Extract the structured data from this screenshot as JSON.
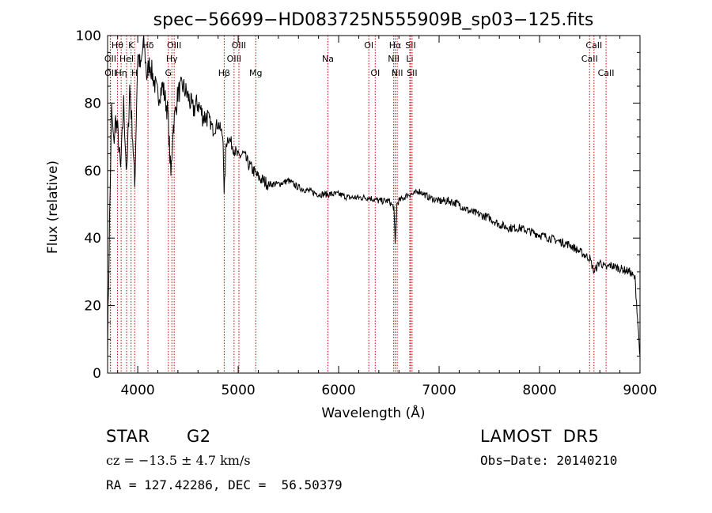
{
  "chart_data": {
    "type": "line",
    "title": "spec−56699−HD083725N555909B_sp03−125.fits",
    "xlabel": "Wavelength (Å)",
    "ylabel": "Flux (relative)",
    "xlim": [
      3700,
      9000
    ],
    "ylim": [
      0,
      100
    ],
    "xticks": [
      4000,
      5000,
      6000,
      7000,
      8000,
      9000
    ],
    "yticks": [
      0,
      20,
      40,
      60,
      80,
      100
    ],
    "grid": false,
    "series": [
      {
        "x": [
          3700,
          3720,
          3740,
          3760,
          3780,
          3800,
          3830,
          3860,
          3890,
          3920,
          3950,
          3970,
          4000,
          4030,
          4060,
          4090,
          4120,
          4150,
          4200,
          4250,
          4300,
          4330,
          4350,
          4400,
          4450,
          4500,
          4550,
          4600,
          4650,
          4700,
          4750,
          4800,
          4850,
          4860,
          4880,
          4900,
          4950,
          5000,
          5050,
          5100,
          5150,
          5200,
          5300,
          5400,
          5500,
          5600,
          5700,
          5800,
          5900,
          6000,
          6100,
          6200,
          6300,
          6400,
          6500,
          6550,
          6563,
          6580,
          6600,
          6650,
          6700,
          6750,
          6800,
          6850,
          6900,
          7000,
          7100,
          7200,
          7300,
          7400,
          7500,
          7600,
          7700,
          7800,
          7900,
          8000,
          8100,
          8200,
          8300,
          8400,
          8500,
          8542,
          8600,
          8662,
          8700,
          8800,
          8900,
          8950,
          9000
        ],
        "y": [
          8,
          45,
          78,
          68,
          75,
          72,
          60,
          80,
          58,
          85,
          70,
          55,
          95,
          90,
          99,
          88,
          92,
          88,
          82,
          85,
          77,
          58,
          72,
          83,
          85,
          82,
          78,
          80,
          76,
          76,
          72,
          74,
          70,
          52,
          68,
          70,
          67,
          64,
          65,
          62,
          60,
          58,
          56,
          56,
          57,
          55,
          54,
          53,
          53,
          53,
          52,
          52,
          52,
          51,
          51,
          49,
          38,
          50,
          51,
          52,
          53,
          53,
          54,
          53,
          52,
          51,
          51,
          50,
          48,
          47,
          46,
          44,
          43,
          43,
          42,
          41,
          40,
          39,
          38,
          36,
          34,
          30,
          33,
          31,
          32,
          31,
          30,
          28,
          5
        ]
      }
    ],
    "line_labels": [
      {
        "label": "Hθ",
        "wave": 3798,
        "row": 0
      },
      {
        "label": "K",
        "wave": 3934,
        "row": 0
      },
      {
        "label": "Hδ",
        "wave": 4102,
        "row": 0
      },
      {
        "label": "OIII",
        "wave": 4363,
        "row": 0
      },
      {
        "label": "OIII",
        "wave": 5007,
        "row": 0
      },
      {
        "label": "OI",
        "wave": 6300,
        "row": 0
      },
      {
        "label": "Hα",
        "wave": 6563,
        "row": 0
      },
      {
        "label": "SII",
        "wave": 6716,
        "row": 0
      },
      {
        "label": "CaII",
        "wave": 8542,
        "row": 0
      },
      {
        "label": "OII",
        "wave": 3727,
        "row": 1
      },
      {
        "label": "HeI",
        "wave": 3889,
        "row": 1
      },
      {
        "label": "Hγ",
        "wave": 4340,
        "row": 1
      },
      {
        "label": "OIII",
        "wave": 4959,
        "row": 1
      },
      {
        "label": "Na",
        "wave": 5893,
        "row": 1
      },
      {
        "label": "NII",
        "wave": 6548,
        "row": 1
      },
      {
        "label": "Li",
        "wave": 6708,
        "row": 1
      },
      {
        "label": "CaII",
        "wave": 8498,
        "row": 1
      },
      {
        "label": "OII",
        "wave": 3729,
        "row": 2
      },
      {
        "label": "Hη",
        "wave": 3835,
        "row": 2
      },
      {
        "label": "H",
        "wave": 3969,
        "row": 2
      },
      {
        "label": "G",
        "wave": 4305,
        "row": 2
      },
      {
        "label": "Hβ",
        "wave": 4861,
        "row": 2
      },
      {
        "label": "Mg",
        "wave": 5175,
        "row": 2
      },
      {
        "label": "OI",
        "wave": 6364,
        "row": 2
      },
      {
        "label": "NII",
        "wave": 6583,
        "row": 2
      },
      {
        "label": "SII",
        "wave": 6731,
        "row": 2
      },
      {
        "label": "CaII",
        "wave": 8662,
        "row": 2
      }
    ],
    "line_marker_color": "#cc0000"
  },
  "info": {
    "object_class": "STAR",
    "subclass": "G2",
    "survey": "LAMOST  DR5",
    "velocity": "cz = −13.5 ± 4.7 km/s",
    "obs_date": "Obs−Date: 20140210",
    "coords": "RA = 127.42286, DEC =  56.50379"
  }
}
